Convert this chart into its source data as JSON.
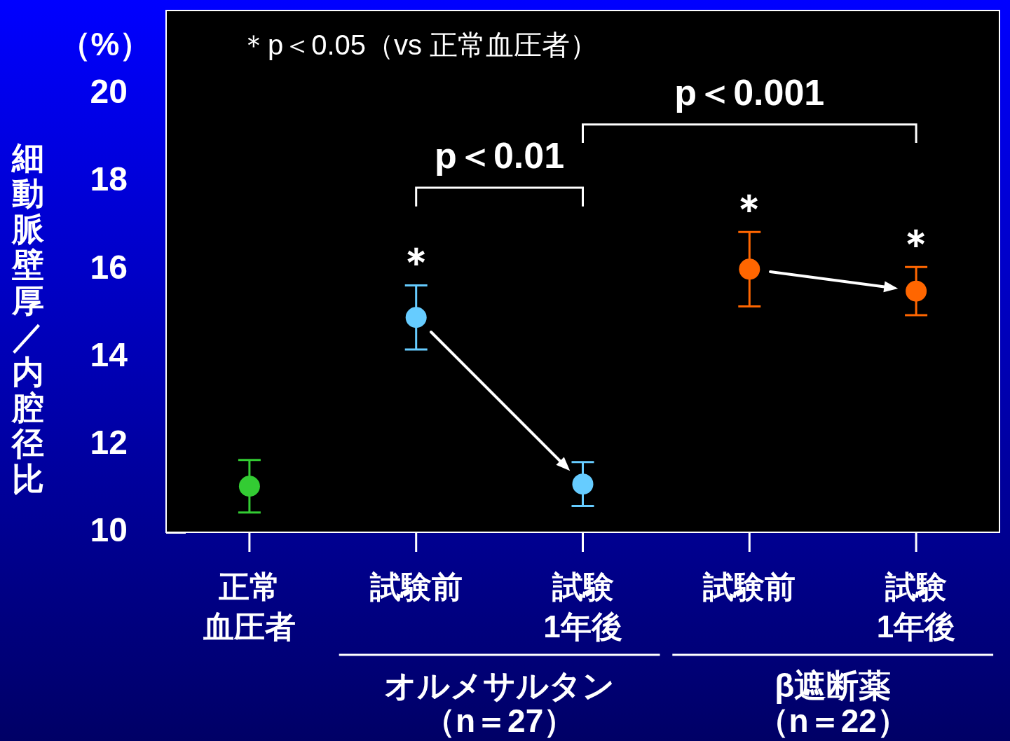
{
  "chart_data": {
    "type": "scatter",
    "ylabel": "細動脈壁厚／内腔径比",
    "categories": [
      "正常血圧者",
      "試験前",
      "試験1年後",
      "試験前",
      "試験1年後"
    ],
    "values": [
      11.05,
      14.9,
      11.1,
      16.0,
      15.5
    ],
    "errors": [
      0.6,
      0.73,
      0.5,
      0.85,
      0.55
    ],
    "colors": [
      "#33cc33",
      "#66ccff",
      "#66ccff",
      "#ff6600",
      "#ff6600"
    ],
    "ylim": [
      10,
      21.9
    ],
    "yticks": [
      10,
      12,
      14,
      16,
      18,
      20
    ],
    "grid": false,
    "legend": false,
    "marker": "circle",
    "annotations": [
      "（%）",
      "＊p＜0.05（vs 正常血圧者）",
      "p＜0.01",
      "p＜0.001",
      "＊",
      "＊",
      "＊",
      "オルメサルタン（n＝27）",
      "β遮断薬（n＝22）"
    ]
  }
}
